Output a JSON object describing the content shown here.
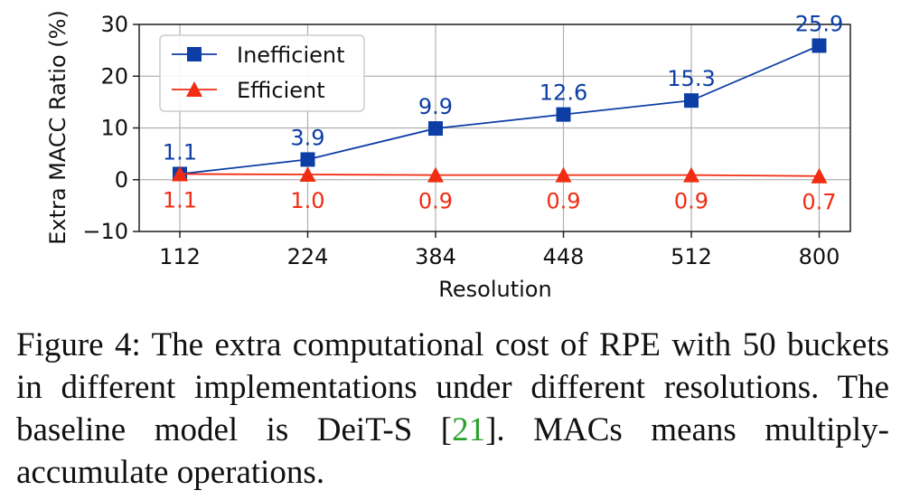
{
  "chart_data": {
    "type": "line",
    "title": "",
    "xlabel": "Resolution",
    "ylabel": "Extra MACC Ratio (%)",
    "categories": [
      "112",
      "224",
      "384",
      "448",
      "512",
      "800"
    ],
    "ylim": [
      -10,
      30
    ],
    "yticks": [
      -10,
      0,
      10,
      20,
      30
    ],
    "ytick_labels": [
      "−10",
      "0",
      "10",
      "20",
      "30"
    ],
    "grid": true,
    "legend_position": "top-left",
    "series": [
      {
        "name": "Inefficient",
        "color": "#0c3ea6",
        "marker": "square",
        "values": [
          1.1,
          3.9,
          9.9,
          12.6,
          15.3,
          25.9
        ],
        "labels": [
          "1.1",
          "3.9",
          "9.9",
          "12.6",
          "15.3",
          "25.9"
        ]
      },
      {
        "name": "Efficient",
        "color": "#f02c12",
        "marker": "triangle",
        "values": [
          1.1,
          1.0,
          0.9,
          0.9,
          0.9,
          0.7
        ],
        "labels": [
          "1.1",
          "1.0",
          "0.9",
          "0.9",
          "0.9",
          "0.7"
        ]
      }
    ]
  },
  "caption": {
    "prefix": "Figure 4:  The extra computational cost of RPE with 50 buckets in different implementations under different resolutions.  The baseline model is DeiT-S [",
    "citation": "21",
    "suffix": "].  MACs means multiply-accumulate operations."
  }
}
